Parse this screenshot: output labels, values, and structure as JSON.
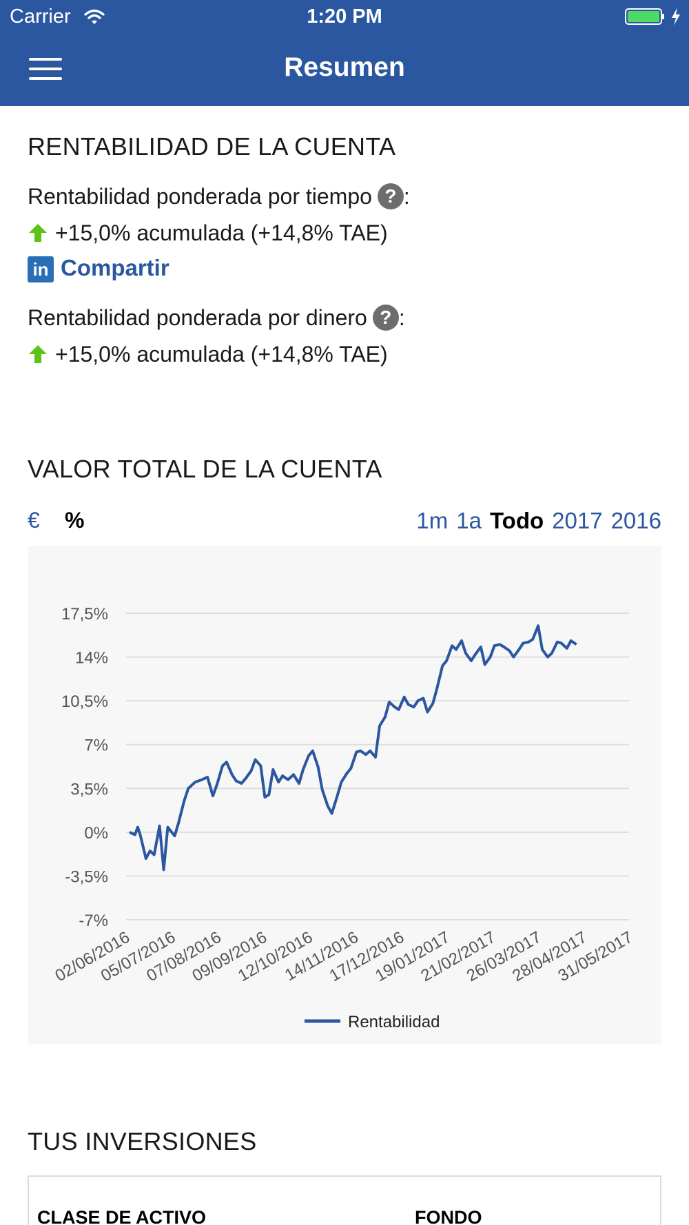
{
  "status_bar": {
    "carrier": "Carrier",
    "time": "1:20 PM"
  },
  "nav": {
    "title": "Resumen"
  },
  "rentabilidad": {
    "title": "RENTABILIDAD DE LA CUENTA",
    "tiempo_label": "Rentabilidad ponderada por tiempo",
    "tiempo_value": "+15,0% acumulada (+14,8% TAE)",
    "share_label": "Compartir",
    "dinero_label": "Rentabilidad ponderada por dinero",
    "dinero_value": "+15,0% acumulada (+14,8% TAE)",
    "help_glyph": "?",
    "colon": ":"
  },
  "valor": {
    "title": "VALOR TOTAL DE LA CUENTA",
    "units": [
      "€",
      "%"
    ],
    "selected_unit": "%",
    "ranges": [
      "1m",
      "1a",
      "Todo",
      "2017",
      "2016"
    ],
    "selected_range": "Todo"
  },
  "chart_data": {
    "type": "line",
    "ylim": [
      -7,
      17.5
    ],
    "yticks": [
      "17,5%",
      "14%",
      "10,5%",
      "7%",
      "3,5%",
      "0%",
      "-3,5%",
      "-7%"
    ],
    "ytick_values": [
      17.5,
      14,
      10.5,
      7,
      3.5,
      0,
      -3.5,
      -7
    ],
    "x_labels": [
      "02/06/2016",
      "05/07/2016",
      "07/08/2016",
      "09/09/2016",
      "12/10/2016",
      "14/11/2016",
      "17/12/2016",
      "19/01/2017",
      "21/02/2017",
      "26/03/2017",
      "28/04/2017",
      "31/05/2017"
    ],
    "grid": true,
    "legend_position": "bottom",
    "series": [
      {
        "name": "Rentabilidad",
        "color": "#2a579f",
        "points": [
          [
            "2016-06-02",
            0.0
          ],
          [
            "2016-06-06",
            -0.2
          ],
          [
            "2016-06-08",
            0.4
          ],
          [
            "2016-06-10",
            -0.3
          ],
          [
            "2016-06-14",
            -2.1
          ],
          [
            "2016-06-17",
            -1.5
          ],
          [
            "2016-06-20",
            -1.8
          ],
          [
            "2016-06-24",
            0.5
          ],
          [
            "2016-06-27",
            -3.0
          ],
          [
            "2016-06-30",
            0.4
          ],
          [
            "2016-07-05",
            -0.3
          ],
          [
            "2016-07-08",
            0.8
          ],
          [
            "2016-07-12",
            2.5
          ],
          [
            "2016-07-15",
            3.5
          ],
          [
            "2016-07-20",
            4.0
          ],
          [
            "2016-07-25",
            4.2
          ],
          [
            "2016-07-29",
            4.4
          ],
          [
            "2016-08-02",
            2.9
          ],
          [
            "2016-08-05",
            3.8
          ],
          [
            "2016-08-09",
            5.3
          ],
          [
            "2016-08-12",
            5.6
          ],
          [
            "2016-08-16",
            4.6
          ],
          [
            "2016-08-19",
            4.1
          ],
          [
            "2016-08-23",
            3.9
          ],
          [
            "2016-08-26",
            4.3
          ],
          [
            "2016-08-30",
            4.9
          ],
          [
            "2016-09-02",
            5.8
          ],
          [
            "2016-09-06",
            5.3
          ],
          [
            "2016-09-09",
            2.8
          ],
          [
            "2016-09-12",
            3.0
          ],
          [
            "2016-09-15",
            5.0
          ],
          [
            "2016-09-19",
            4.0
          ],
          [
            "2016-09-22",
            4.5
          ],
          [
            "2016-09-26",
            4.2
          ],
          [
            "2016-09-30",
            4.6
          ],
          [
            "2016-10-04",
            3.9
          ],
          [
            "2016-10-07",
            5.0
          ],
          [
            "2016-10-11",
            6.1
          ],
          [
            "2016-10-14",
            6.5
          ],
          [
            "2016-10-18",
            5.2
          ],
          [
            "2016-10-21",
            3.4
          ],
          [
            "2016-10-25",
            2.1
          ],
          [
            "2016-10-28",
            1.5
          ],
          [
            "2016-11-01",
            2.9
          ],
          [
            "2016-11-04",
            4.0
          ],
          [
            "2016-11-08",
            4.7
          ],
          [
            "2016-11-11",
            5.1
          ],
          [
            "2016-11-15",
            6.4
          ],
          [
            "2016-11-18",
            6.5
          ],
          [
            "2016-11-22",
            6.2
          ],
          [
            "2016-11-25",
            6.5
          ],
          [
            "2016-11-29",
            6.0
          ],
          [
            "2016-12-02",
            8.5
          ],
          [
            "2016-12-06",
            9.2
          ],
          [
            "2016-12-09",
            10.4
          ],
          [
            "2016-12-13",
            10.0
          ],
          [
            "2016-12-16",
            9.8
          ],
          [
            "2016-12-20",
            10.8
          ],
          [
            "2016-12-23",
            10.2
          ],
          [
            "2016-12-27",
            10.0
          ],
          [
            "2016-12-30",
            10.5
          ],
          [
            "2017-01-03",
            10.7
          ],
          [
            "2017-01-06",
            9.6
          ],
          [
            "2017-01-10",
            10.3
          ],
          [
            "2017-01-13",
            11.5
          ],
          [
            "2017-01-17",
            13.3
          ],
          [
            "2017-01-20",
            13.7
          ],
          [
            "2017-01-24",
            14.9
          ],
          [
            "2017-01-27",
            14.6
          ],
          [
            "2017-01-31",
            15.3
          ],
          [
            "2017-02-03",
            14.3
          ],
          [
            "2017-02-07",
            13.7
          ],
          [
            "2017-02-10",
            14.2
          ],
          [
            "2017-02-14",
            14.8
          ],
          [
            "2017-02-17",
            13.4
          ],
          [
            "2017-02-21",
            14.0
          ],
          [
            "2017-02-24",
            14.9
          ],
          [
            "2017-02-28",
            15.0
          ],
          [
            "2017-03-03",
            14.8
          ],
          [
            "2017-03-07",
            14.5
          ],
          [
            "2017-03-10",
            14.0
          ],
          [
            "2017-03-14",
            14.6
          ],
          [
            "2017-03-17",
            15.1
          ],
          [
            "2017-03-21",
            15.2
          ],
          [
            "2017-03-24",
            15.4
          ],
          [
            "2017-03-28",
            16.5
          ],
          [
            "2017-03-31",
            14.6
          ],
          [
            "2017-04-04",
            14.0
          ],
          [
            "2017-04-07",
            14.3
          ],
          [
            "2017-04-11",
            15.2
          ],
          [
            "2017-04-14",
            15.1
          ],
          [
            "2017-04-18",
            14.7
          ],
          [
            "2017-04-21",
            15.3
          ],
          [
            "2017-04-25",
            15.0
          ]
        ]
      }
    ]
  },
  "inversiones": {
    "title": "TUS INVERSIONES",
    "columns": [
      "CLASE DE ACTIVO",
      "FONDO"
    ]
  }
}
